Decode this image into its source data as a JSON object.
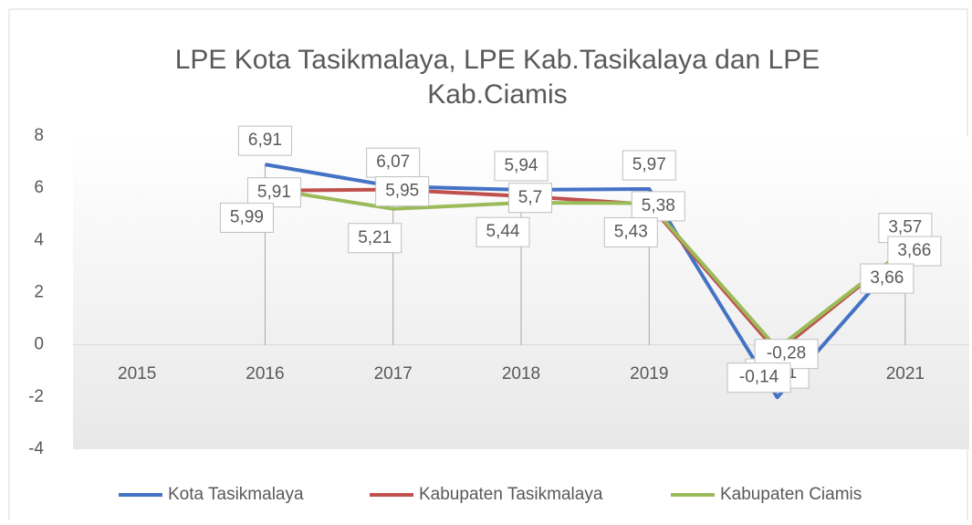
{
  "chart_data": {
    "type": "line",
    "title": "LPE Kota Tasikmalaya, LPE Kab.Tasikalaya dan LPE Kab.Ciamis",
    "categories": [
      "2015",
      "2016",
      "2017",
      "2018",
      "2019",
      "2020",
      "2021"
    ],
    "series": [
      {
        "name": "Kota Tasikmalaya",
        "color": "#4472c4",
        "values": [
          null,
          6.91,
          6.07,
          5.94,
          5.97,
          -2.01,
          3.57
        ],
        "value_labels": [
          null,
          "6,91",
          "6,07",
          "5,94",
          "5,97",
          "-2,01",
          "3,57"
        ]
      },
      {
        "name": "Kabupaten Tasikmalaya",
        "color": "#c0504d",
        "values": [
          null,
          5.91,
          5.95,
          5.7,
          5.38,
          -0.28,
          3.66
        ],
        "value_labels": [
          null,
          "5,91",
          "5,95",
          "5,7",
          "5,38",
          "-0,28",
          "3,66"
        ]
      },
      {
        "name": "Kabupaten Ciamis",
        "color": "#9bbb59",
        "values": [
          null,
          5.99,
          5.21,
          5.44,
          5.43,
          -0.14,
          3.66
        ],
        "value_labels": [
          null,
          "5,99",
          "5,21",
          "5,44",
          "5,43",
          "-0,14",
          "3,66"
        ]
      }
    ],
    "ylim": [
      -4,
      8
    ],
    "yticks": [
      -4,
      -2,
      0,
      2,
      4,
      6,
      8
    ],
    "grid": false,
    "legend": "bottom"
  }
}
